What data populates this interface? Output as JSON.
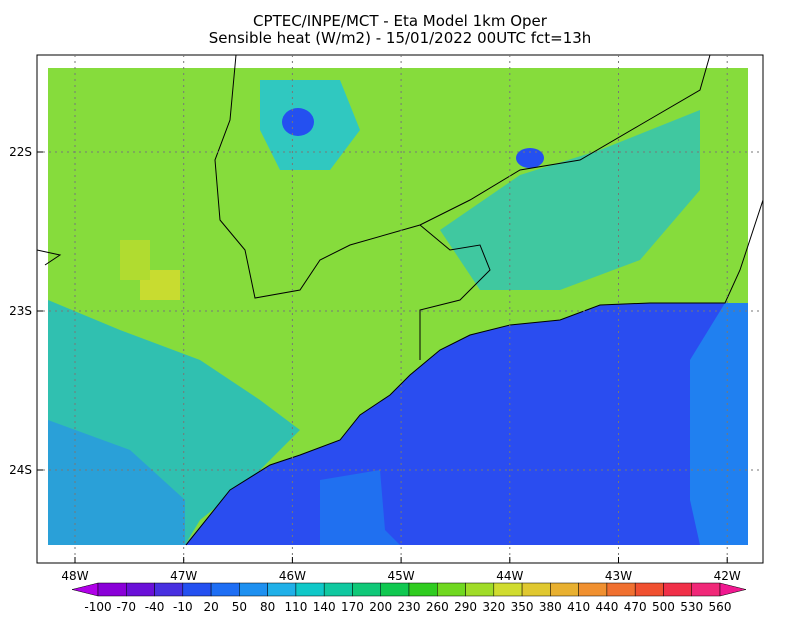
{
  "title": {
    "line1": "CPTEC/INPE/MCT -  Eta Model 1km Oper",
    "line2": "Sensible heat (W/m2) - 15/01/2022 00UTC fct=13h"
  },
  "map": {
    "lat_labels": [
      "22S",
      "23S",
      "24S"
    ],
    "lon_labels": [
      "48W",
      "47W",
      "46W",
      "45W",
      "44W",
      "43W",
      "42W"
    ]
  },
  "colorbar": {
    "labels": [
      "-100",
      "-70",
      "-40",
      "-10",
      "20",
      "50",
      "80",
      "110",
      "140",
      "170",
      "200",
      "230",
      "260",
      "290",
      "320",
      "350",
      "380",
      "410",
      "440",
      "470",
      "500",
      "530",
      "560"
    ],
    "colors": [
      "#b000e8",
      "#8a00d8",
      "#6a10d8",
      "#4830e0",
      "#2450f0",
      "#1e6ef4",
      "#1e90f0",
      "#20b0e8",
      "#10c8c8",
      "#10c8a0",
      "#10c878",
      "#10c850",
      "#30cc20",
      "#70d820",
      "#a0dc28",
      "#d0dc30",
      "#e0c830",
      "#e8b030",
      "#f09030",
      "#f07030",
      "#f05030",
      "#f03048",
      "#f02878",
      "#f01890"
    ]
  }
}
